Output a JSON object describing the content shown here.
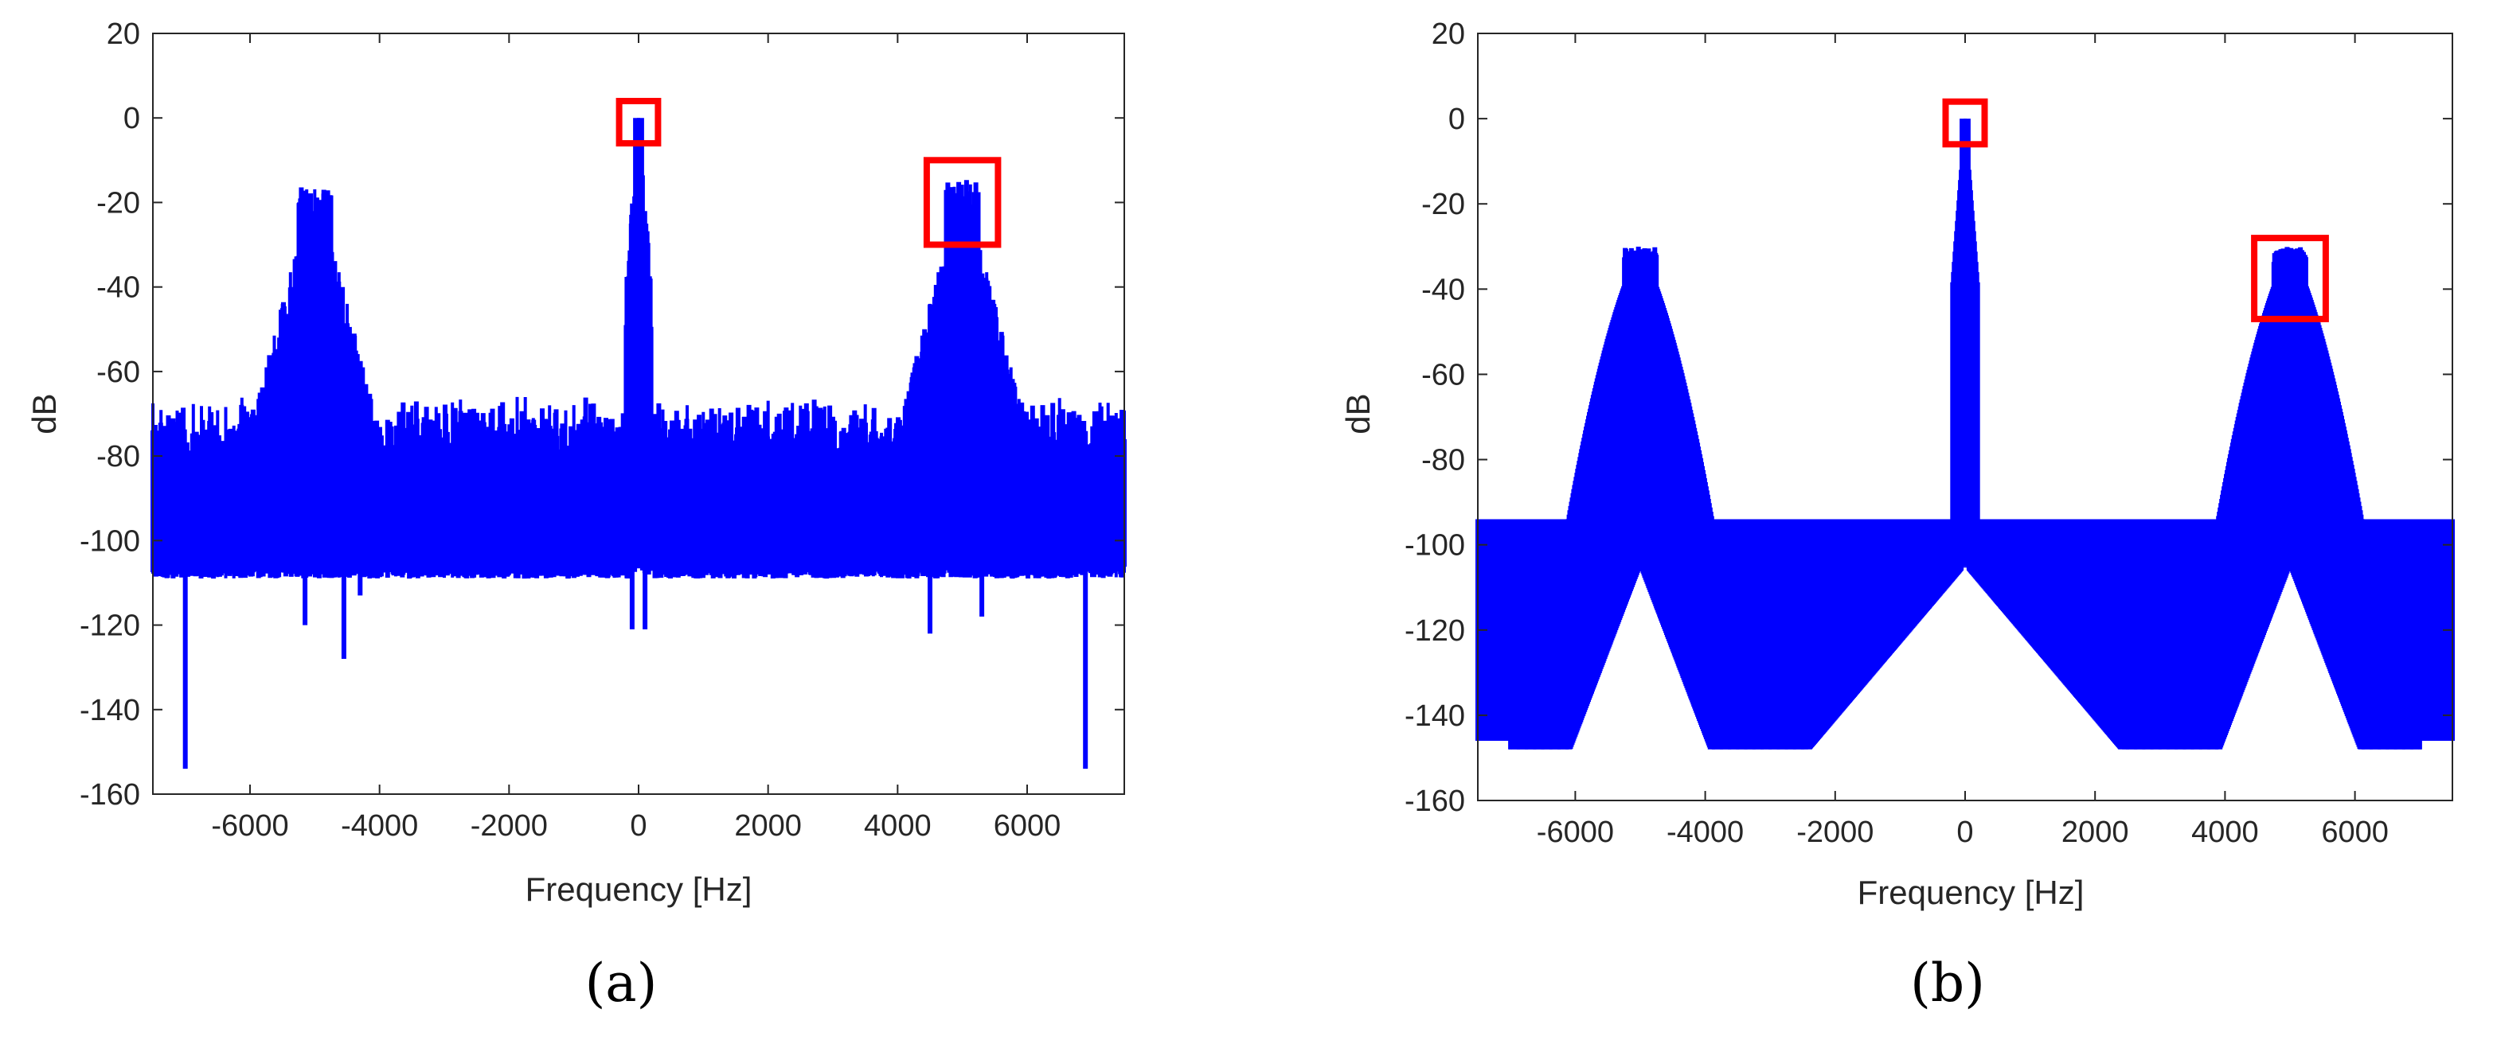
{
  "chart_data": [
    {
      "type": "line",
      "caption": "(a)",
      "xlabel": "Frequency [Hz]",
      "ylabel": "dB",
      "xlim": [
        -7500,
        7500
      ],
      "ylim": [
        -160,
        20
      ],
      "xticks": [
        -6000,
        -4000,
        -2000,
        0,
        2000,
        4000,
        6000
      ],
      "yticks": [
        20,
        0,
        -20,
        -40,
        -60,
        -80,
        -100,
        -120,
        -140,
        -160
      ],
      "line_color": "#0000ff",
      "highlight_color": "#ff0000",
      "spectrum": {
        "noise_top": -80,
        "noise_floor": -109,
        "tone_floor": -100,
        "carrier_peak": 0,
        "sideband_peak": -14,
        "sideband_center": 5000,
        "line_spacing": 125,
        "deep_notches": [
          [
            -7000,
            -154
          ],
          [
            6900,
            -154
          ],
          [
            -4550,
            -128
          ],
          [
            -5150,
            -120
          ],
          [
            -100,
            -121
          ],
          [
            100,
            -121
          ],
          [
            4500,
            -122
          ],
          [
            -4300,
            -113
          ],
          [
            5300,
            -118
          ]
        ]
      },
      "highlight_boxes": [
        {
          "x": [
            -300,
            300
          ],
          "y": [
            -6,
            4
          ]
        },
        {
          "x": [
            4450,
            5550
          ],
          "y": [
            -30,
            -10
          ]
        }
      ]
    },
    {
      "type": "line",
      "caption": "(b)",
      "xlabel": "Frequency [Hz]",
      "ylabel": "dB",
      "xlim": [
        -7500,
        7500
      ],
      "ylim": [
        -160,
        20
      ],
      "xticks": [
        -6000,
        -4000,
        -2000,
        0,
        2000,
        4000,
        6000
      ],
      "yticks": [
        20,
        0,
        -20,
        -40,
        -60,
        -80,
        -100,
        -120,
        -140,
        -160
      ],
      "line_color": "#0000ff",
      "highlight_color": "#ff0000",
      "spectrum": {
        "floor_min": -148,
        "floor_max_near_carrier": -105,
        "carrier_peak": 0,
        "sideband_peak": -30,
        "sideband_center": 5000,
        "valley_level": -94,
        "line_spacing": 125
      },
      "highlight_boxes": [
        {
          "x": [
            -300,
            300
          ],
          "y": [
            -6,
            4
          ]
        },
        {
          "x": [
            4450,
            5550
          ],
          "y": [
            -47,
            -28
          ]
        }
      ]
    }
  ]
}
